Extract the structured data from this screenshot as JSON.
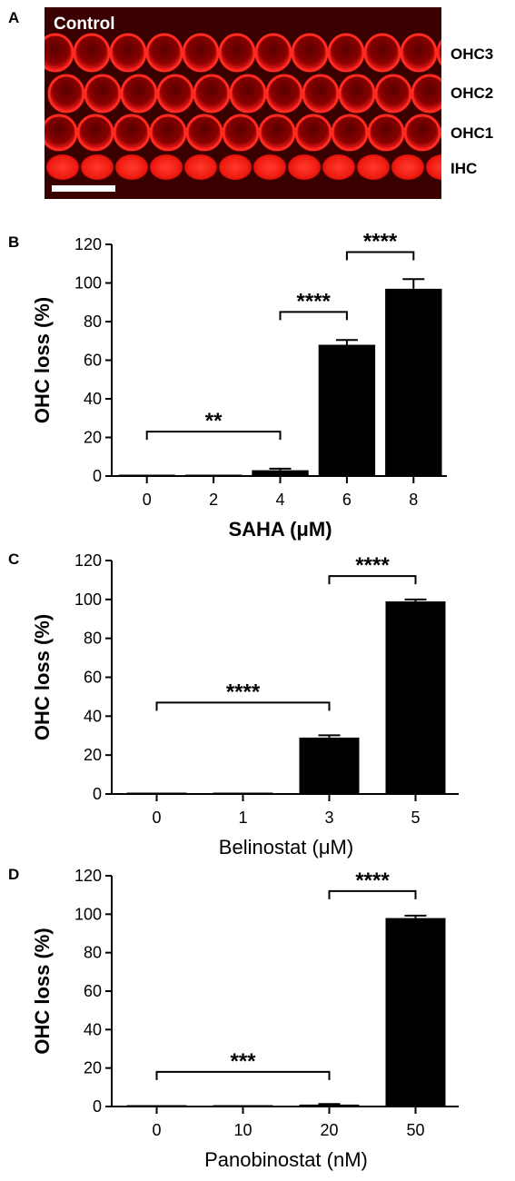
{
  "panel_a": {
    "letter": "A",
    "condition_label": "Control",
    "row_labels": [
      "OHC3",
      "OHC2",
      "OHC1",
      "IHC"
    ]
  },
  "chart_data": [
    {
      "panel": "B",
      "type": "bar",
      "categories": [
        "0",
        "2",
        "4",
        "6",
        "8"
      ],
      "values": [
        0,
        0,
        3,
        68,
        97
      ],
      "errors": [
        0,
        0,
        0.8,
        2.5,
        5
      ],
      "xlabel": "SAHA (μM)",
      "ylabel": "OHC loss (%)",
      "ylim": [
        0,
        120
      ],
      "yticks": [
        0,
        20,
        40,
        60,
        80,
        100,
        120
      ],
      "significance": [
        {
          "from": 0,
          "to": 2,
          "label": "**",
          "y": 23
        },
        {
          "from": 2,
          "to": 3,
          "label": "****",
          "y": 85
        },
        {
          "from": 3,
          "to": 4,
          "label": "****",
          "y": 116
        }
      ]
    },
    {
      "panel": "C",
      "type": "bar",
      "categories": [
        "0",
        "1",
        "3",
        "5"
      ],
      "values": [
        0,
        0,
        29,
        99
      ],
      "errors": [
        0,
        0,
        1.2,
        1
      ],
      "xlabel": "Belinostat (μM)",
      "ylabel": "OHC loss (%)",
      "ylim": [
        0,
        120
      ],
      "yticks": [
        0,
        20,
        40,
        60,
        80,
        100,
        120
      ],
      "significance": [
        {
          "from": 0,
          "to": 2,
          "label": "****",
          "y": 47
        },
        {
          "from": 2,
          "to": 3,
          "label": "****",
          "y": 112
        }
      ]
    },
    {
      "panel": "D",
      "type": "bar",
      "categories": [
        "0",
        "10",
        "20",
        "50"
      ],
      "values": [
        0,
        0,
        1,
        98
      ],
      "errors": [
        0,
        0,
        0.3,
        1.3
      ],
      "xlabel": "Panobinostat (nM)",
      "ylabel": "OHC loss (%)",
      "ylim": [
        0,
        120
      ],
      "yticks": [
        0,
        20,
        40,
        60,
        80,
        100,
        120
      ],
      "significance": [
        {
          "from": 0,
          "to": 2,
          "label": "***",
          "y": 18
        },
        {
          "from": 2,
          "to": 3,
          "label": "****",
          "y": 112
        }
      ]
    }
  ]
}
